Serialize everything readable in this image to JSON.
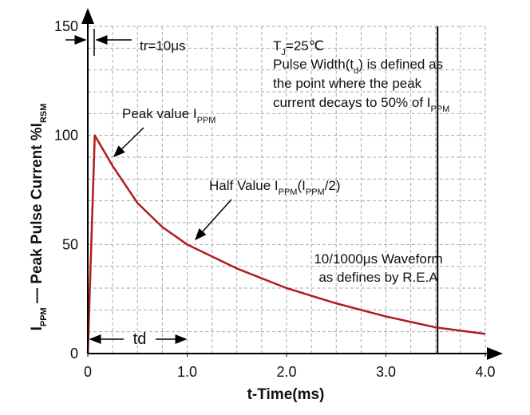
{
  "chart_data": {
    "type": "line",
    "x": [
      0,
      0.07,
      0.25,
      0.5,
      0.75,
      1.0,
      1.5,
      2.0,
      2.5,
      3.0,
      3.5,
      4.0
    ],
    "values": [
      0,
      100,
      86,
      69,
      58,
      50,
      39,
      30,
      23,
      17,
      12,
      9
    ],
    "color": "#b01c1c",
    "xlim": [
      0,
      4.0
    ],
    "ylim": [
      0,
      150
    ],
    "xticks": [
      0,
      {
        "value": 1.0,
        "label": "1.0"
      },
      {
        "value": 2.0,
        "label": "2.0"
      },
      {
        "value": 3.0,
        "label": "3.0"
      },
      {
        "value": 4.0,
        "label": "4.0"
      }
    ],
    "yticks": [
      0,
      50,
      100,
      150
    ],
    "minor_xticks": [
      0.25,
      0.5,
      0.75,
      1.0,
      1.25,
      1.5,
      1.75,
      2.0,
      2.25,
      2.5,
      2.75,
      3.0,
      3.25,
      3.5,
      3.75,
      4.0
    ],
    "minor_yticks": [
      10,
      20,
      30,
      40,
      50,
      60,
      70,
      80,
      90,
      100,
      110,
      120,
      130,
      140,
      150
    ],
    "grid": true,
    "vline_x": 3.52,
    "xlabel": "t-Time(ms)",
    "ylabel": [
      {
        "t": "I"
      },
      {
        "t": "PPM",
        "sub": true
      },
      {
        "t": " — Peak Pulse Current  %I"
      },
      {
        "t": "RSM",
        "sub": true
      }
    ],
    "annotations": [
      [
        {
          "t": "tr=10μs"
        }
      ],
      [
        {
          "t": "T"
        },
        {
          "t": "J",
          "sub": true
        },
        {
          "t": "=25℃"
        }
      ],
      [
        {
          "t": "Pulse Width(t"
        },
        {
          "t": "d",
          "sub": true
        },
        {
          "t": ") is defined as"
        }
      ],
      [
        {
          "t": "the point where the peak"
        }
      ],
      [
        {
          "t": "current decays to 50% of I"
        },
        {
          "t": "PPM",
          "sub": true
        }
      ],
      [
        {
          "t": "Peak value I"
        },
        {
          "t": "PPM",
          "sub": true
        }
      ],
      [
        {
          "t": "Half Value I"
        },
        {
          "t": "PPM",
          "sub": true
        },
        {
          "t": "(I"
        },
        {
          "t": "PPM",
          "sub": true
        },
        {
          "t": "/2)"
        }
      ],
      [
        {
          "t": "10/1000μs Waveform"
        }
      ],
      [
        {
          "t": "as defines by R.E.A"
        }
      ],
      [
        {
          "t": "td"
        }
      ]
    ]
  }
}
